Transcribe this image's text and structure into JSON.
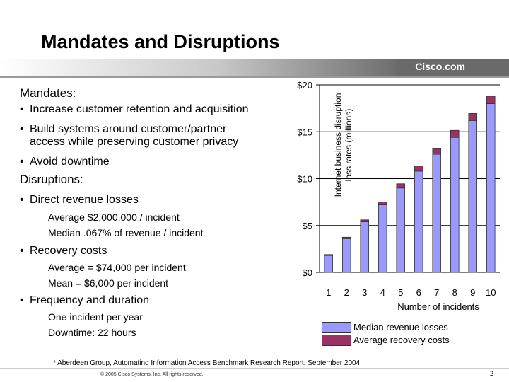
{
  "slide": {
    "title": "Mandates and Disruptions",
    "brand": "Cisco.com",
    "footnote": "* Aberdeen Group, Automating Information Access Benchmark Research Report, September 2004",
    "copyright": "© 2005 Cisco Systems, Inc. All rights reserved.",
    "page_number": "2"
  },
  "left": {
    "mandates_heading": "Mandates:",
    "mandate_1": "Increase customer retention and acquisition",
    "mandate_2_line1": "Build systems around customer/partner",
    "mandate_2_line2": "access while preserving customer privacy",
    "mandate_3": "Avoid downtime",
    "disruptions_heading": "Disruptions:",
    "disruption_1": "Direct revenue losses",
    "disruption_1_sub1": "Average $2,000,000 / incident",
    "disruption_1_sub2": "Median .067% of revenue / incident",
    "disruption_2": "Recovery costs",
    "disruption_2_sub1": "Average = $74,000 per incident",
    "disruption_2_sub2": "Mean = $6,000 per incident",
    "disruption_3": "Frequency and duration",
    "disruption_3_sub1": "One incident per year",
    "disruption_3_sub2": "Downtime: 22 hours"
  },
  "chart_data": {
    "type": "bar",
    "stacked": true,
    "categories": [
      "1",
      "2",
      "3",
      "4",
      "5",
      "6",
      "7",
      "8",
      "9",
      "10"
    ],
    "series": [
      {
        "name": "Median revenue losses",
        "color": "#9999ff",
        "values": [
          1.8,
          3.6,
          5.4,
          7.2,
          9.0,
          10.8,
          12.6,
          14.4,
          16.2,
          18.0
        ]
      },
      {
        "name": "Average recovery costs",
        "color": "#993366",
        "values": [
          0.1,
          0.15,
          0.2,
          0.3,
          0.45,
          0.55,
          0.65,
          0.75,
          0.75,
          0.8
        ]
      }
    ],
    "yticks": [
      "$0",
      "$5",
      "$10",
      "$15",
      "$20"
    ],
    "ylim": [
      0,
      20
    ],
    "ylabel_line1": "Internet business disruption",
    "ylabel_line2": "loss rates (millions)",
    "xlabel": "Number of incidents",
    "grid": true,
    "legend_position": "bottom"
  }
}
